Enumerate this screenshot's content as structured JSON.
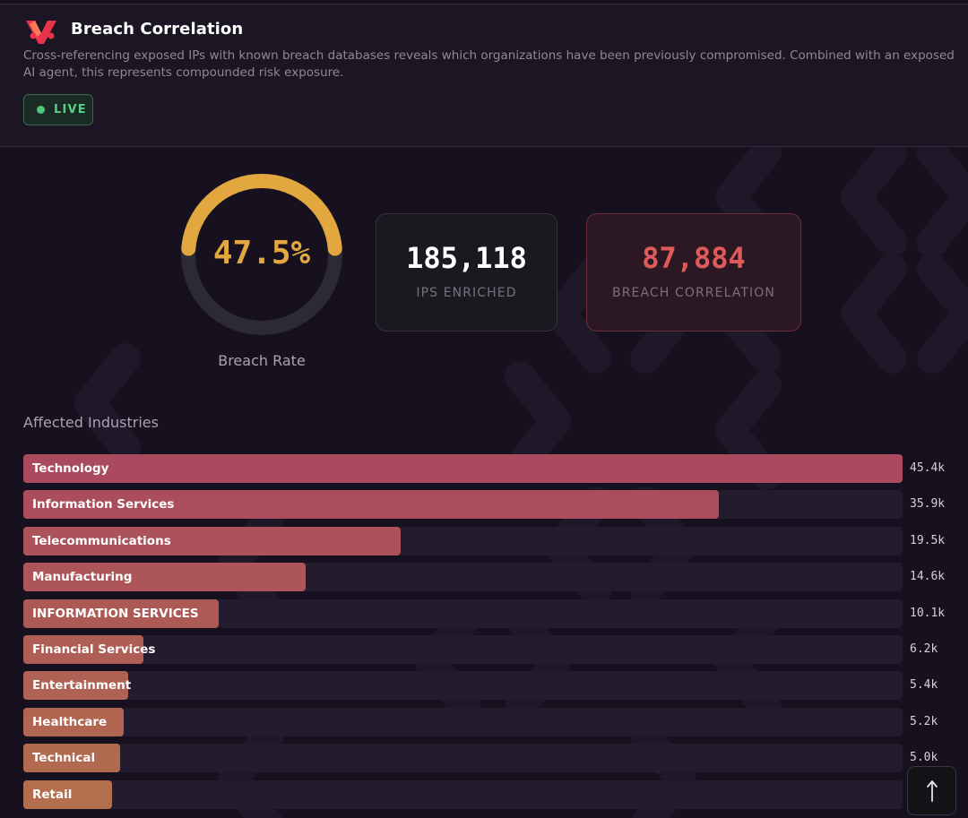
{
  "header": {
    "title": "Breach Correlation",
    "description": "Cross-referencing exposed IPs with known breach databases reveals which organizations have been previously compromised. Combined with an exposed AI agent, this represents compounded risk exposure.",
    "live_label": "LIVE"
  },
  "gauge": {
    "value_text": "47.5%",
    "value": 47.5,
    "label": "Breach Rate"
  },
  "stats": {
    "ips_enriched": {
      "value": "185,118",
      "label": "IPS ENRICHED"
    },
    "breach_correlation": {
      "value": "87,884",
      "label": "BREACH CORRELATION"
    }
  },
  "industries": {
    "title": "Affected Industries",
    "items": [
      {
        "label": "Technology",
        "value_text": "45.4k",
        "value": 45.4,
        "color": "#a94a5e"
      },
      {
        "label": "Information Services",
        "value_text": "35.9k",
        "value": 35.9,
        "color": "#aa4e5d"
      },
      {
        "label": "Telecommunications",
        "value_text": "19.5k",
        "value": 19.5,
        "color": "#ab525b"
      },
      {
        "label": "Manufacturing",
        "value_text": "14.6k",
        "value": 14.6,
        "color": "#ac5659"
      },
      {
        "label": "INFORMATION SERVICES",
        "value_text": "10.1k",
        "value": 10.1,
        "color": "#ad5a57"
      },
      {
        "label": "Financial Services",
        "value_text": "6.2k",
        "value": 6.2,
        "color": "#ae5e55"
      },
      {
        "label": "Entertainment",
        "value_text": "5.4k",
        "value": 5.4,
        "color": "#af6253"
      },
      {
        "label": "Healthcare",
        "value_text": "5.2k",
        "value": 5.2,
        "color": "#b06651"
      },
      {
        "label": "Technical",
        "value_text": "5.0k",
        "value": 5.0,
        "color": "#b16a4f"
      },
      {
        "label": "Retail",
        "value_text": "",
        "value": 4.6,
        "color": "#b26e4d"
      }
    ]
  },
  "colors": {
    "accent": "#e3a73f",
    "danger": "#df5a5a",
    "live": "#4fc776"
  },
  "icons": {
    "logo": "brand-logo-icon",
    "scroll_top": "arrow-up-icon"
  }
}
